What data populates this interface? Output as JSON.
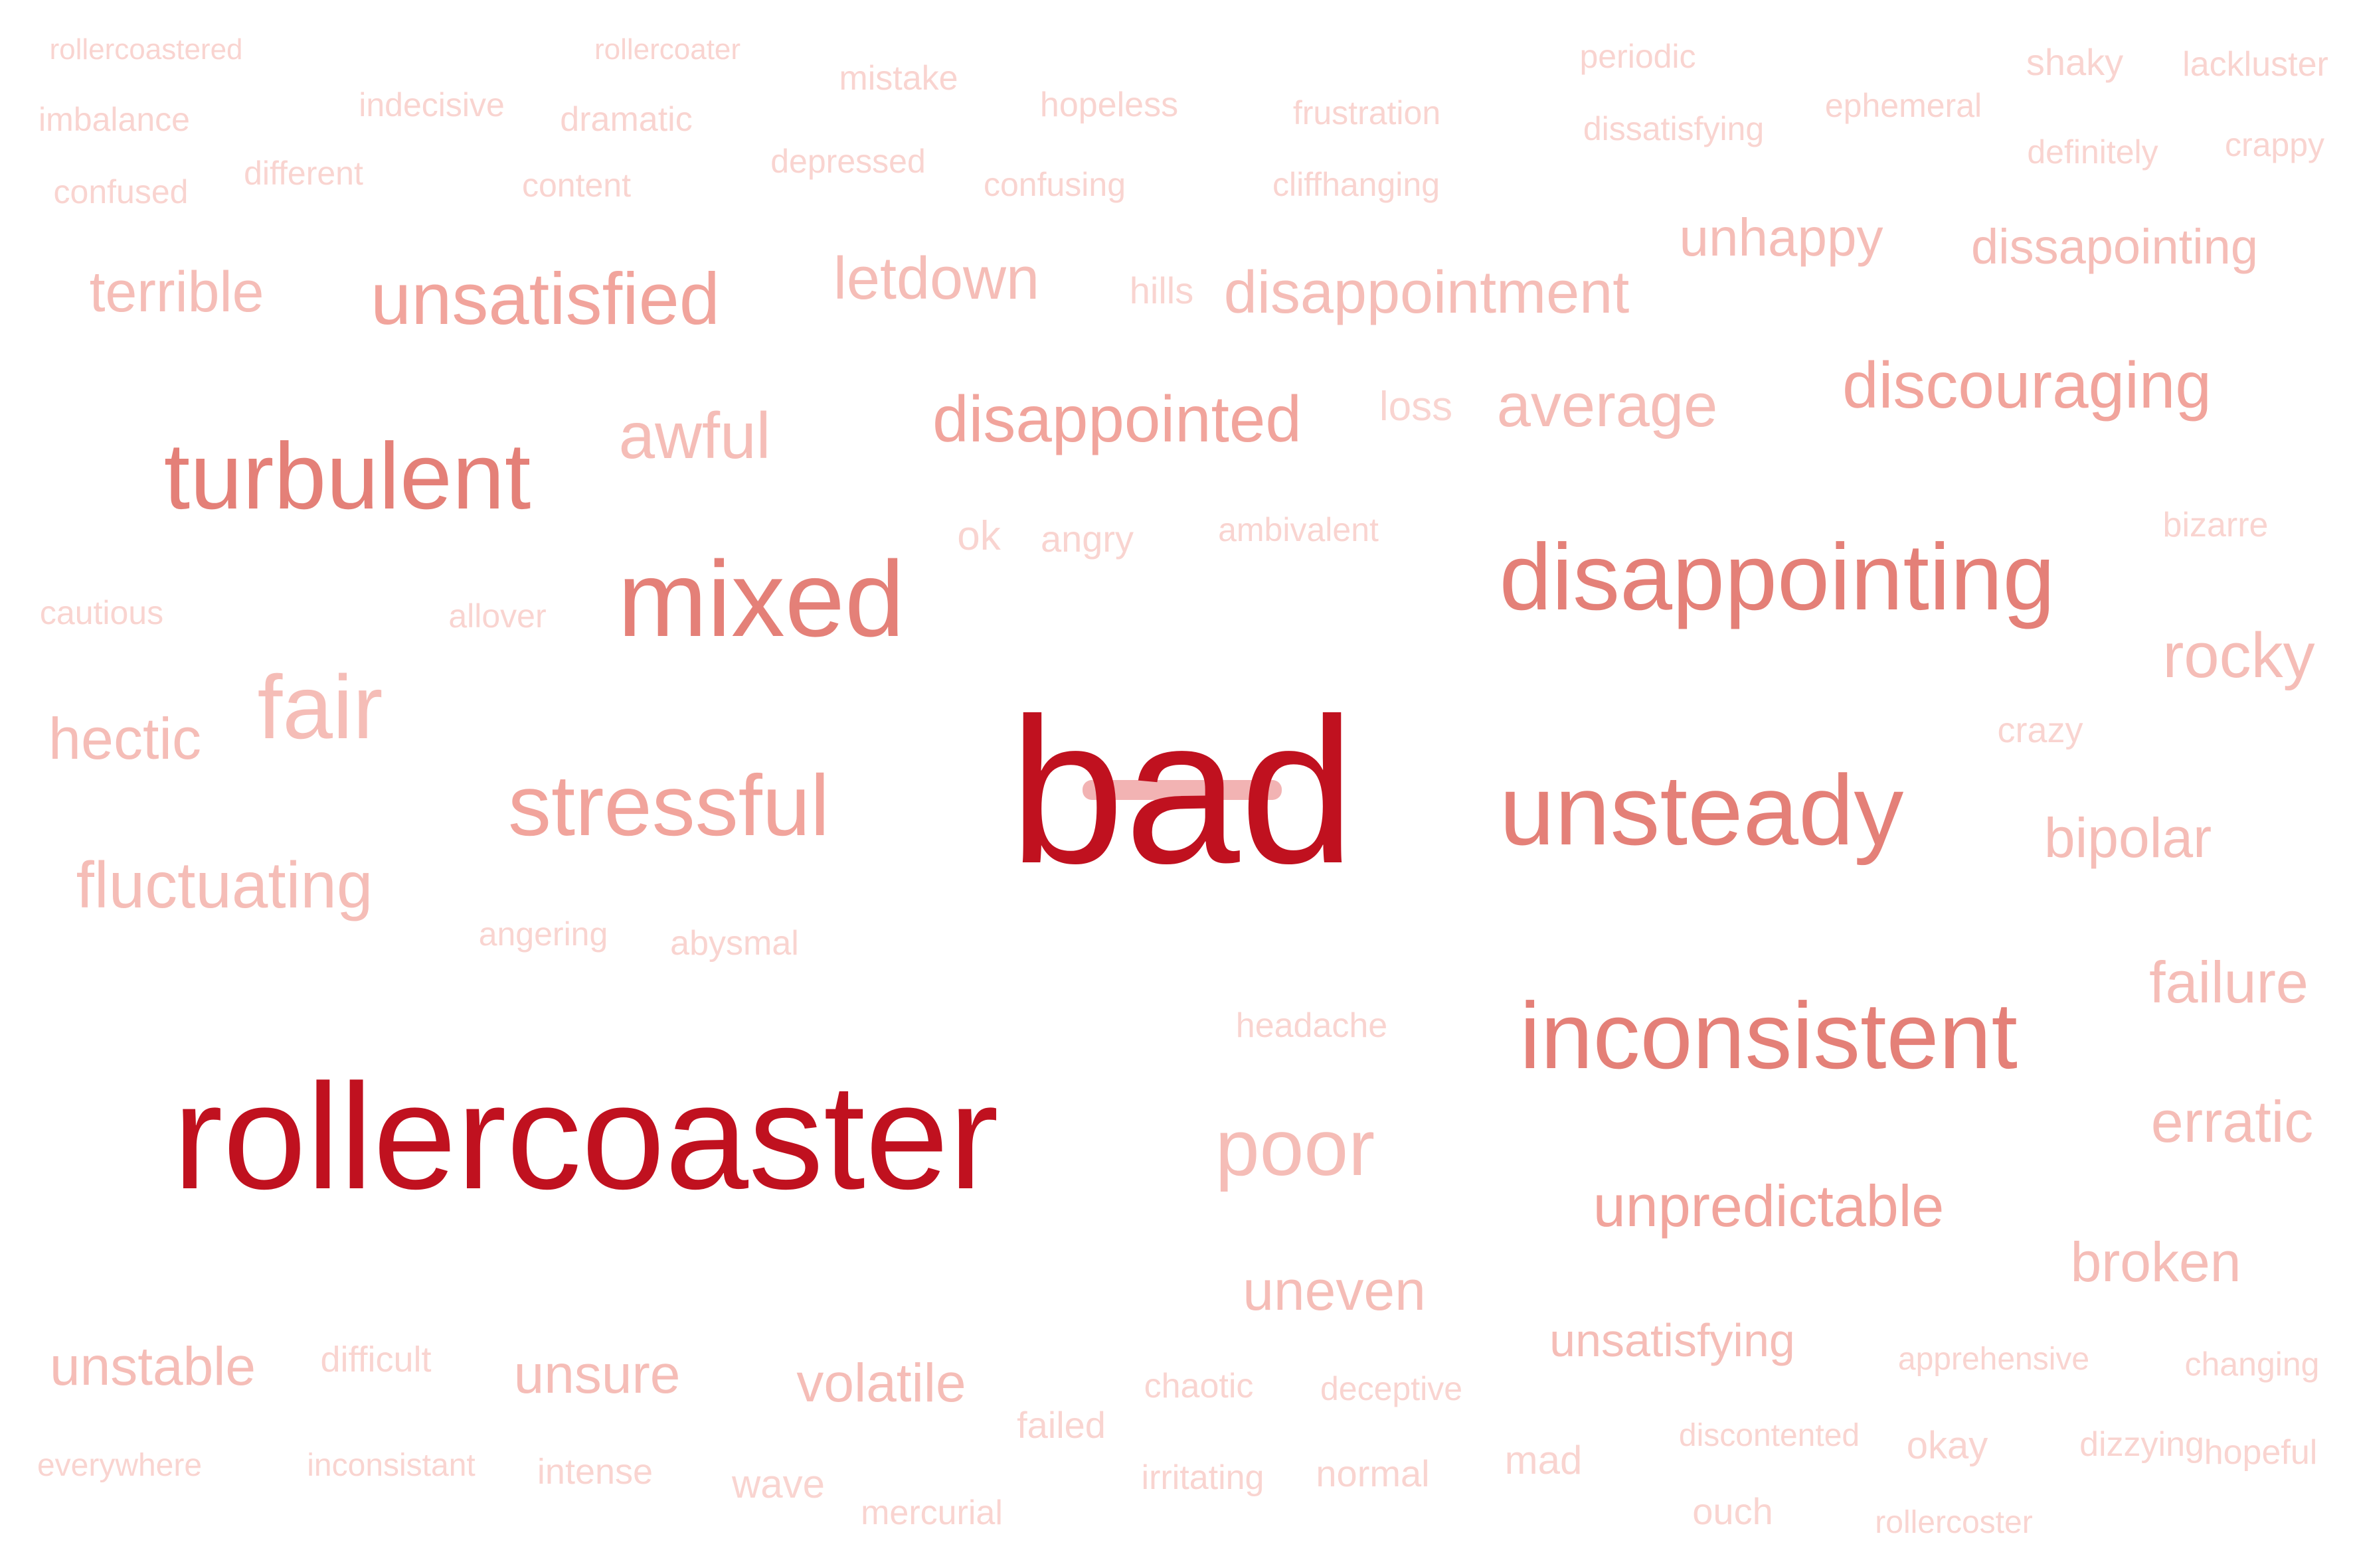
{
  "colors": {
    "background": "#ffffff",
    "dark": "#c0111f",
    "strong": "#e48078",
    "medium": "#f1a49c",
    "light": "#f5bdb7",
    "faint": "#f9d4d0"
  },
  "words": [
    {
      "text": "rollercoastered",
      "tone": "faint"
    },
    {
      "text": "rollercoater",
      "tone": "faint"
    },
    {
      "text": "mistake",
      "tone": "faint"
    },
    {
      "text": "periodic",
      "tone": "faint"
    },
    {
      "text": "shaky",
      "tone": "faint"
    },
    {
      "text": "lackluster",
      "tone": "faint"
    },
    {
      "text": "imbalance",
      "tone": "faint"
    },
    {
      "text": "indecisive",
      "tone": "faint"
    },
    {
      "text": "dramatic",
      "tone": "faint"
    },
    {
      "text": "hopeless",
      "tone": "faint"
    },
    {
      "text": "frustration",
      "tone": "faint"
    },
    {
      "text": "dissatisfying",
      "tone": "faint"
    },
    {
      "text": "ephemeral",
      "tone": "faint"
    },
    {
      "text": "definitely",
      "tone": "faint"
    },
    {
      "text": "crappy",
      "tone": "faint"
    },
    {
      "text": "different",
      "tone": "faint"
    },
    {
      "text": "depressed",
      "tone": "faint"
    },
    {
      "text": "confused",
      "tone": "faint"
    },
    {
      "text": "content",
      "tone": "faint"
    },
    {
      "text": "confusing",
      "tone": "faint"
    },
    {
      "text": "cliffhanging",
      "tone": "faint"
    },
    {
      "text": "unhappy",
      "tone": "light"
    },
    {
      "text": "dissapointing",
      "tone": "light"
    },
    {
      "text": "terrible",
      "tone": "light"
    },
    {
      "text": "unsatisfied",
      "tone": "medium"
    },
    {
      "text": "letdown",
      "tone": "light"
    },
    {
      "text": "hills",
      "tone": "faint"
    },
    {
      "text": "disappointment",
      "tone": "light"
    },
    {
      "text": "discouraging",
      "tone": "medium"
    },
    {
      "text": "awful",
      "tone": "light"
    },
    {
      "text": "disappointed",
      "tone": "medium"
    },
    {
      "text": "loss",
      "tone": "faint"
    },
    {
      "text": "average",
      "tone": "light"
    },
    {
      "text": "turbulent",
      "tone": "strong"
    },
    {
      "text": "ok",
      "tone": "faint"
    },
    {
      "text": "angry",
      "tone": "faint"
    },
    {
      "text": "ambivalent",
      "tone": "faint"
    },
    {
      "text": "bizarre",
      "tone": "faint"
    },
    {
      "text": "disappointing",
      "tone": "strong"
    },
    {
      "text": "mixed",
      "tone": "strong"
    },
    {
      "text": "cautious",
      "tone": "faint"
    },
    {
      "text": "allover",
      "tone": "faint"
    },
    {
      "text": "rocky",
      "tone": "light"
    },
    {
      "text": "fair",
      "tone": "light"
    },
    {
      "text": "hectic",
      "tone": "light"
    },
    {
      "text": "bad",
      "tone": "dark"
    },
    {
      "text": "crazy",
      "tone": "faint"
    },
    {
      "text": "stressful",
      "tone": "medium"
    },
    {
      "text": "unsteady",
      "tone": "strong"
    },
    {
      "text": "bipolar",
      "tone": "light"
    },
    {
      "text": "fluctuating",
      "tone": "light"
    },
    {
      "text": "angering",
      "tone": "faint"
    },
    {
      "text": "abysmal",
      "tone": "faint"
    },
    {
      "text": "failure",
      "tone": "light"
    },
    {
      "text": "headache",
      "tone": "faint"
    },
    {
      "text": "inconsistent",
      "tone": "strong"
    },
    {
      "text": "rollercoaster",
      "tone": "dark"
    },
    {
      "text": "erratic",
      "tone": "light"
    },
    {
      "text": "poor",
      "tone": "light"
    },
    {
      "text": "unpredictable",
      "tone": "medium"
    },
    {
      "text": "broken",
      "tone": "light"
    },
    {
      "text": "uneven",
      "tone": "light"
    },
    {
      "text": "unsatisfying",
      "tone": "light"
    },
    {
      "text": "unstable",
      "tone": "light"
    },
    {
      "text": "difficult",
      "tone": "faint"
    },
    {
      "text": "unsure",
      "tone": "light"
    },
    {
      "text": "volatile",
      "tone": "light"
    },
    {
      "text": "chaotic",
      "tone": "faint"
    },
    {
      "text": "deceptive",
      "tone": "faint"
    },
    {
      "text": "apprehensive",
      "tone": "faint"
    },
    {
      "text": "changing",
      "tone": "faint"
    },
    {
      "text": "failed",
      "tone": "faint"
    },
    {
      "text": "discontented",
      "tone": "faint"
    },
    {
      "text": "okay",
      "tone": "faint"
    },
    {
      "text": "dizzying",
      "tone": "faint"
    },
    {
      "text": "hopeful",
      "tone": "faint"
    },
    {
      "text": "everywhere",
      "tone": "faint"
    },
    {
      "text": "inconsistant",
      "tone": "faint"
    },
    {
      "text": "intense",
      "tone": "faint"
    },
    {
      "text": "mad",
      "tone": "faint"
    },
    {
      "text": "wave",
      "tone": "faint"
    },
    {
      "text": "irritating",
      "tone": "faint"
    },
    {
      "text": "normal",
      "tone": "faint"
    },
    {
      "text": "mercurial",
      "tone": "faint"
    },
    {
      "text": "ouch",
      "tone": "faint"
    },
    {
      "text": "rollercoster",
      "tone": "faint"
    }
  ]
}
